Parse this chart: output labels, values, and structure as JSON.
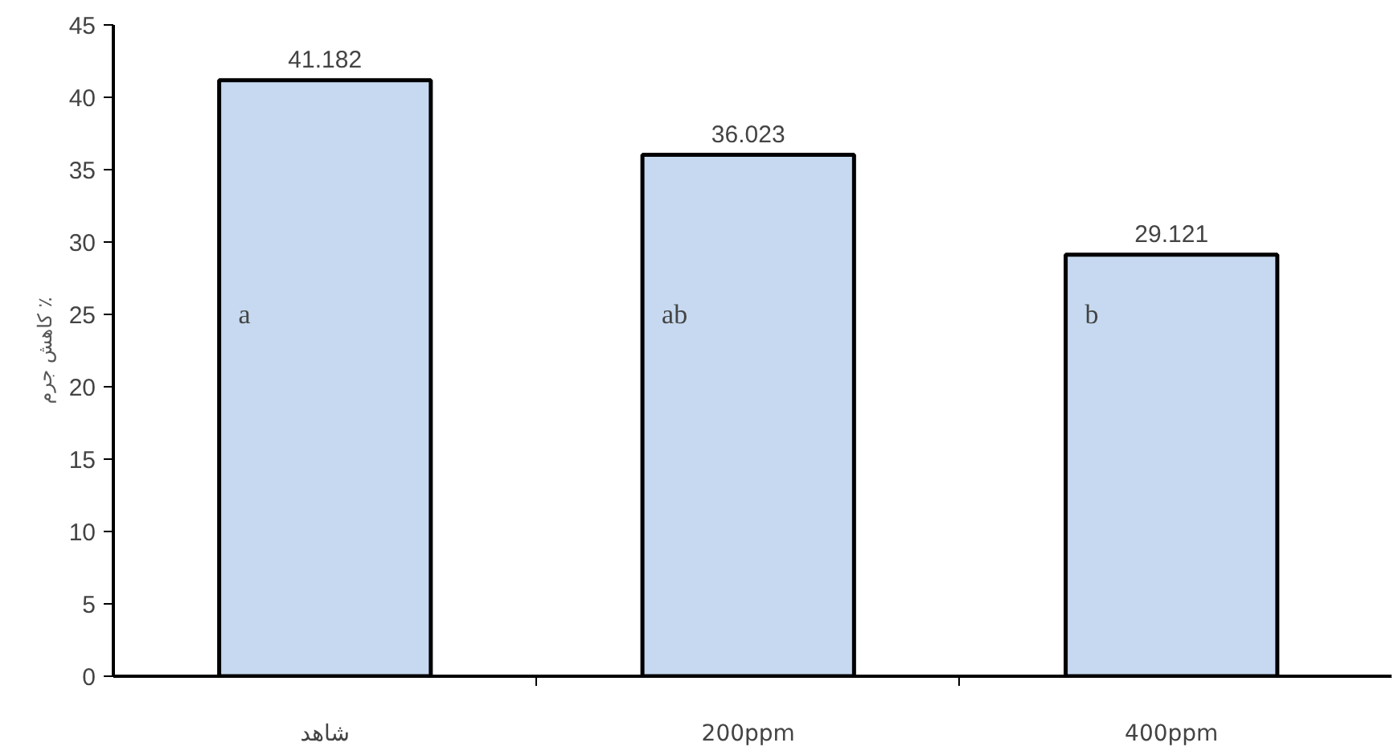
{
  "chart_data": {
    "type": "bar",
    "ylabel": "کاهش جرم ٪",
    "categories": [
      "شاهد",
      "200ppm",
      "400ppm"
    ],
    "values": [
      41.182,
      36.023,
      29.121
    ],
    "color": "#c6d9f0",
    "ylim": [
      0,
      45
    ],
    "yticks": [
      0,
      5,
      10,
      15,
      20,
      25,
      30,
      35,
      40,
      45
    ],
    "data_labels": true,
    "grid": false,
    "annotations": [
      "a",
      "ab",
      "b"
    ]
  }
}
